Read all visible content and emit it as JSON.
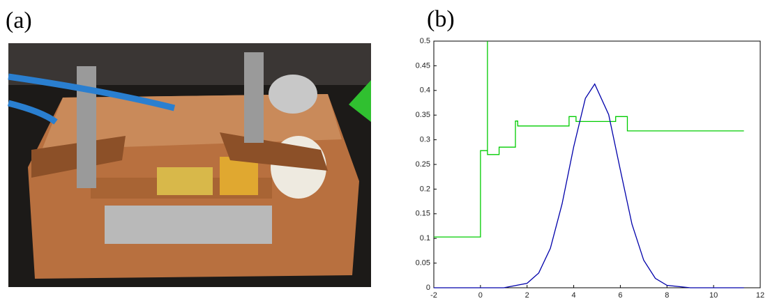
{
  "panels": {
    "a": "(a)",
    "b": "(b)"
  },
  "chart_data": {
    "type": "line",
    "xlim": [
      -2,
      12
    ],
    "xticks": [
      -2,
      0,
      2,
      4,
      6,
      8,
      10,
      12
    ],
    "ylim": [
      0,
      0.5
    ],
    "yticks": [
      0,
      0.05,
      0.1,
      0.15,
      0.2,
      0.25,
      0.3,
      0.35,
      0.4,
      0.45,
      0.5
    ],
    "series": [
      {
        "color": "#00cc00",
        "x": [
          -2,
          0,
          0,
          0.3,
          0.3,
          0.3,
          0.3,
          0.8,
          0.8,
          1.5,
          1.5,
          1.6,
          1.6,
          3.8,
          3.8,
          4.1,
          4.1,
          5.8,
          5.8,
          6.3,
          6.3,
          11.3
        ],
        "values": [
          0.103,
          0.103,
          0.278,
          0.278,
          0.5,
          0.5,
          0.27,
          0.27,
          0.285,
          0.285,
          0.338,
          0.338,
          0.328,
          0.328,
          0.347,
          0.347,
          0.337,
          0.337,
          0.347,
          0.347,
          0.318,
          0.318
        ]
      },
      {
        "color": "#0000aa",
        "x": [
          -2,
          1,
          2,
          2.5,
          3,
          3.5,
          4,
          4.5,
          4.9,
          5.5,
          6,
          6.5,
          7,
          7.5,
          8,
          9,
          11.3
        ],
        "values": [
          0,
          0,
          0.009,
          0.03,
          0.08,
          0.17,
          0.286,
          0.384,
          0.413,
          0.351,
          0.239,
          0.129,
          0.056,
          0.019,
          0.005,
          0,
          0
        ]
      }
    ]
  }
}
